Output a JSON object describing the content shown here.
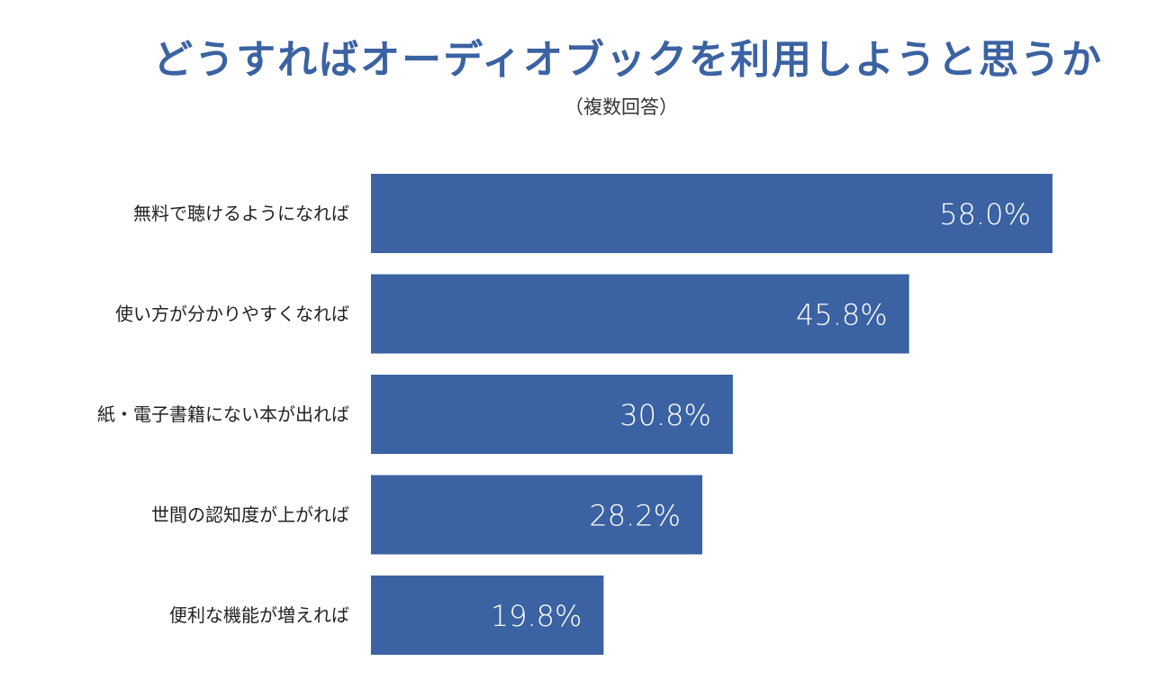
{
  "chart_data": {
    "type": "bar",
    "orientation": "horizontal",
    "title": "どうすればオーディオブックを利用しようと思うか",
    "subtitle": "（複数回答）",
    "categories": [
      "無料で聴けるようになれば",
      "使い方が分かりやすくなれば",
      "紙・電子書籍にない本が出れば",
      "世間の認知度が上がれば",
      "便利な機能が増えれば"
    ],
    "values": [
      58.0,
      45.8,
      30.8,
      28.2,
      19.8
    ],
    "value_labels": [
      "58.0%",
      "45.8%",
      "30.8%",
      "28.2%",
      "19.8%"
    ],
    "xlim": [
      0,
      100
    ],
    "grid": false,
    "bar_color": "#3b62a2"
  }
}
